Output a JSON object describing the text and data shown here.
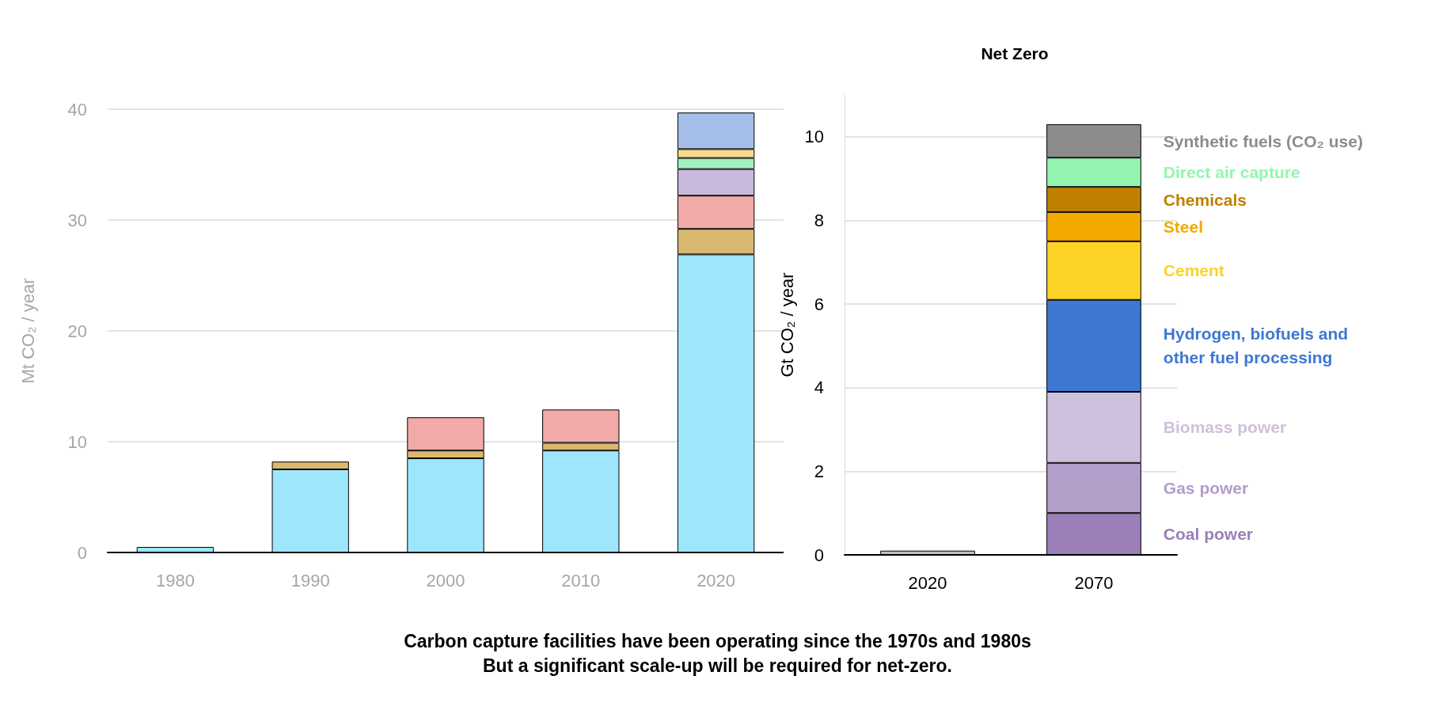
{
  "chart_data": [
    {
      "type": "bar",
      "stacked": true,
      "ylabel": "Mt CO₂ / year",
      "categories": [
        "1980",
        "1990",
        "2000",
        "2010",
        "2020"
      ],
      "ylim": [
        0,
        40
      ],
      "yticks": [
        0,
        10,
        20,
        30,
        40
      ],
      "grid": "y",
      "legend": false,
      "series": [
        {
          "color": "#9ee6fc",
          "values": [
            0.5,
            7.5,
            8.5,
            9.2,
            26.9
          ]
        },
        {
          "color": "#d9b86f",
          "values": [
            null,
            0.7,
            0.7,
            0.7,
            2.3
          ]
        },
        {
          "color": "#f2aaa8",
          "values": [
            null,
            null,
            3.0,
            3.0,
            3.0
          ]
        },
        {
          "color": "#c9b9da",
          "values": [
            null,
            null,
            null,
            null,
            2.4
          ]
        },
        {
          "color": "#a4f0c0",
          "values": [
            null,
            null,
            null,
            null,
            1.0
          ]
        },
        {
          "color": "#f7d98a",
          "values": [
            null,
            null,
            null,
            null,
            0.8
          ]
        },
        {
          "color": "#a4bee9",
          "values": [
            null,
            null,
            null,
            null,
            3.3
          ]
        }
      ],
      "annotations": [
        "Carbon capture facilities have been operating since the 1970s and 1980s",
        "But a significant scale-up will be required for net-zero."
      ]
    },
    {
      "type": "bar",
      "stacked": true,
      "title": "Net Zero",
      "ylabel": "Gt CO₂ / year",
      "categories": [
        "2020",
        "2070"
      ],
      "ylim": [
        0,
        11
      ],
      "yticks": [
        0,
        2,
        4,
        6,
        8,
        10
      ],
      "grid": "y",
      "legend": false,
      "series": [
        {
          "color": "#c0c0c0",
          "values": [
            0.1,
            null
          ]
        },
        {
          "name": "Coal power",
          "color": "#9b7fb8",
          "values": [
            null,
            1.0
          ]
        },
        {
          "name": "Gas power",
          "color": "#b39dc9",
          "values": [
            null,
            1.2
          ]
        },
        {
          "name": "Biomass power",
          "color": "#cfc0dd",
          "values": [
            null,
            1.7
          ]
        },
        {
          "name": "Hydrogen, biofuels and other fuel processing",
          "color": "#3c78d4",
          "values": [
            null,
            2.2
          ]
        },
        {
          "name": "Cement",
          "color": "#fdd226",
          "values": [
            null,
            1.4
          ]
        },
        {
          "name": "Steel",
          "color": "#f2a900",
          "values": [
            null,
            0.7
          ]
        },
        {
          "name": "Chemicals",
          "color": "#bf8000",
          "values": [
            null,
            0.6
          ]
        },
        {
          "name": "Direct air capture",
          "color": "#93f5b0",
          "values": [
            null,
            0.7
          ]
        },
        {
          "name": "Synthetic fuels (CO₂ use)",
          "color": "#8c8c8c",
          "values": [
            null,
            0.8
          ]
        }
      ]
    }
  ]
}
